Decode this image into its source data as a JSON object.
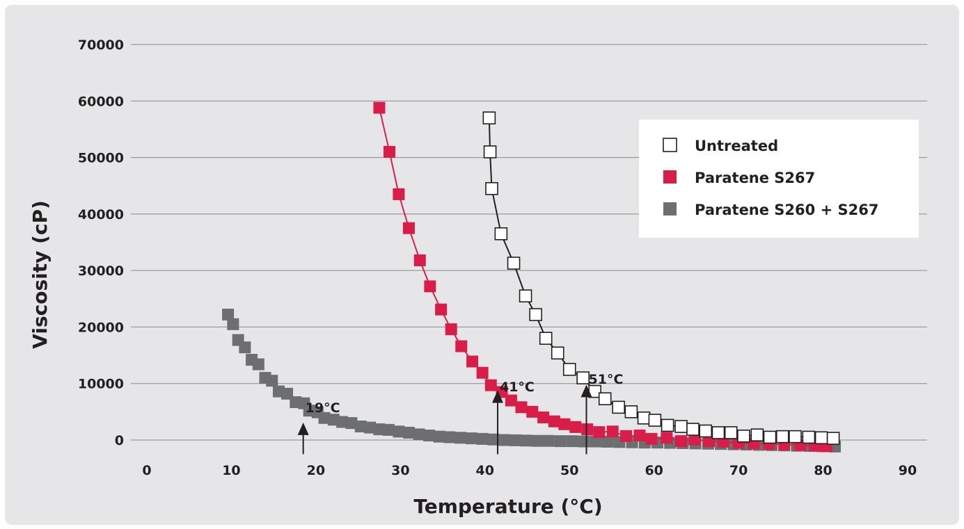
{
  "chart_data": {
    "type": "line",
    "xlabel": "Temperature (°C)",
    "ylabel": "Viscosity (cP)",
    "xlim": [
      0,
      90
    ],
    "ylim": [
      0,
      70000
    ],
    "x_ticks": [
      0,
      10,
      20,
      30,
      40,
      50,
      60,
      70,
      80,
      90
    ],
    "y_ticks": [
      0,
      10000,
      20000,
      30000,
      40000,
      50000,
      60000,
      70000
    ],
    "y_tick_labels": [
      "0",
      "10000",
      "20000",
      "30000",
      "40000",
      "50000",
      "60000",
      "70000"
    ],
    "x_tick_labels": [
      "0",
      "10",
      "20",
      "30",
      "40",
      "50",
      "60",
      "70",
      "80",
      "90"
    ],
    "grid": "horizontal",
    "legend_placement": "top-right",
    "series": [
      {
        "name": "Untreated",
        "color": "#ffffff",
        "stroke": "#231f20",
        "marker": "open-square",
        "points": [
          [
            40.5,
            57000
          ],
          [
            40.6,
            51000
          ],
          [
            40.8,
            44500
          ],
          [
            41.9,
            36500
          ],
          [
            43.4,
            31300
          ],
          [
            44.8,
            25500
          ],
          [
            46,
            22200
          ],
          [
            47.2,
            18000
          ],
          [
            48.6,
            15400
          ],
          [
            50,
            12500
          ],
          [
            51.6,
            11000
          ],
          [
            53,
            8600
          ],
          [
            54.2,
            7300
          ],
          [
            55.8,
            5800
          ],
          [
            57.3,
            5000
          ],
          [
            58.8,
            3900
          ],
          [
            60.1,
            3500
          ],
          [
            61.6,
            2600
          ],
          [
            63.2,
            2400
          ],
          [
            64.6,
            1900
          ],
          [
            66.1,
            1600
          ],
          [
            67.6,
            1300
          ],
          [
            69.1,
            1300
          ],
          [
            70.6,
            700
          ],
          [
            72.2,
            900
          ],
          [
            73.7,
            500
          ],
          [
            75.2,
            600
          ],
          [
            76.7,
            600
          ],
          [
            78.3,
            500
          ],
          [
            79.8,
            400
          ],
          [
            81.2,
            300
          ]
        ]
      },
      {
        "name": "Paratene S267",
        "color": "#d81e48",
        "stroke": "#d81e48",
        "marker": "square",
        "points": [
          [
            27.5,
            58800
          ],
          [
            28.7,
            51000
          ],
          [
            29.8,
            43500
          ],
          [
            31,
            37500
          ],
          [
            32.3,
            31800
          ],
          [
            33.5,
            27200
          ],
          [
            34.8,
            23100
          ],
          [
            36,
            19600
          ],
          [
            37.2,
            16600
          ],
          [
            38.5,
            13900
          ],
          [
            39.7,
            11900
          ],
          [
            40.7,
            9700
          ],
          [
            42,
            8500
          ],
          [
            43.1,
            7000
          ],
          [
            44.3,
            5800
          ],
          [
            45.6,
            5000
          ],
          [
            46.9,
            4000
          ],
          [
            48.2,
            3300
          ],
          [
            49.4,
            2800
          ],
          [
            50.7,
            2300
          ],
          [
            52.1,
            1900
          ],
          [
            53.5,
            1400
          ],
          [
            55.1,
            1500
          ],
          [
            56.7,
            700
          ],
          [
            58.3,
            800
          ],
          [
            59.7,
            200
          ],
          [
            61.5,
            400
          ],
          [
            63.2,
            -200
          ],
          [
            64.8,
            100
          ],
          [
            66.5,
            -200
          ],
          [
            68.2,
            -300
          ],
          [
            70,
            -500
          ],
          [
            71.8,
            -600
          ],
          [
            73.6,
            -700
          ],
          [
            75.4,
            -800
          ],
          [
            77.3,
            -900
          ],
          [
            79,
            -1000
          ],
          [
            80.4,
            -1100
          ]
        ]
      },
      {
        "name": "Paratene S260 + S267",
        "color": "#6d6e70",
        "stroke": "#6d6e70",
        "marker": "square",
        "points": [
          [
            9.6,
            22200
          ],
          [
            10.2,
            20500
          ],
          [
            10.8,
            17700
          ],
          [
            11.6,
            16400
          ],
          [
            12.4,
            14200
          ],
          [
            13.2,
            13400
          ],
          [
            14,
            11000
          ],
          [
            14.8,
            10500
          ],
          [
            15.6,
            8600
          ],
          [
            16.6,
            8200
          ],
          [
            17.6,
            6700
          ],
          [
            18.6,
            6500
          ],
          [
            19.2,
            5200
          ],
          [
            20.2,
            4900
          ],
          [
            21,
            3900
          ],
          [
            22.1,
            3600
          ],
          [
            23.1,
            3200
          ],
          [
            24.2,
            3000
          ],
          [
            25.3,
            2400
          ],
          [
            26.4,
            2200
          ],
          [
            27.5,
            1900
          ],
          [
            28.6,
            1800
          ],
          [
            29.8,
            1500
          ],
          [
            31,
            1300
          ],
          [
            32.2,
            1000
          ],
          [
            33.4,
            800
          ],
          [
            34.6,
            600
          ],
          [
            35.8,
            500
          ],
          [
            37.1,
            400
          ],
          [
            38.4,
            300
          ],
          [
            39.7,
            200
          ],
          [
            41,
            100
          ],
          [
            42.3,
            0
          ],
          [
            43.6,
            -50
          ],
          [
            44.9,
            -100
          ],
          [
            46.2,
            -150
          ],
          [
            47.5,
            -150
          ],
          [
            48.9,
            -200
          ],
          [
            50.3,
            -200
          ],
          [
            51.7,
            -250
          ],
          [
            53.1,
            -250
          ],
          [
            54.5,
            -300
          ],
          [
            55.9,
            -350
          ],
          [
            57.4,
            -400
          ],
          [
            58.9,
            -450
          ],
          [
            60.4,
            -450
          ],
          [
            61.9,
            -500
          ],
          [
            63.4,
            -550
          ],
          [
            64.9,
            -600
          ],
          [
            66.4,
            -650
          ],
          [
            67.9,
            -700
          ],
          [
            69.4,
            -750
          ],
          [
            70.9,
            -800
          ],
          [
            72.4,
            -850
          ],
          [
            73.9,
            -900
          ],
          [
            75.4,
            -950
          ],
          [
            76.9,
            -1000
          ],
          [
            78.4,
            -1050
          ],
          [
            79.9,
            -1100
          ],
          [
            81.4,
            -1150
          ]
        ]
      }
    ],
    "annotations": [
      {
        "label": "19°C",
        "x": 18.5,
        "y_text": 5800,
        "y_from": -2500,
        "y_to": 2600
      },
      {
        "label": "41°C",
        "x": 41.5,
        "y_text": 9500,
        "y_from": -2500,
        "y_to": 8300
      },
      {
        "label": "51°C",
        "x": 52,
        "y_text": 10800,
        "y_from": -2500,
        "y_to": 9300
      }
    ]
  }
}
